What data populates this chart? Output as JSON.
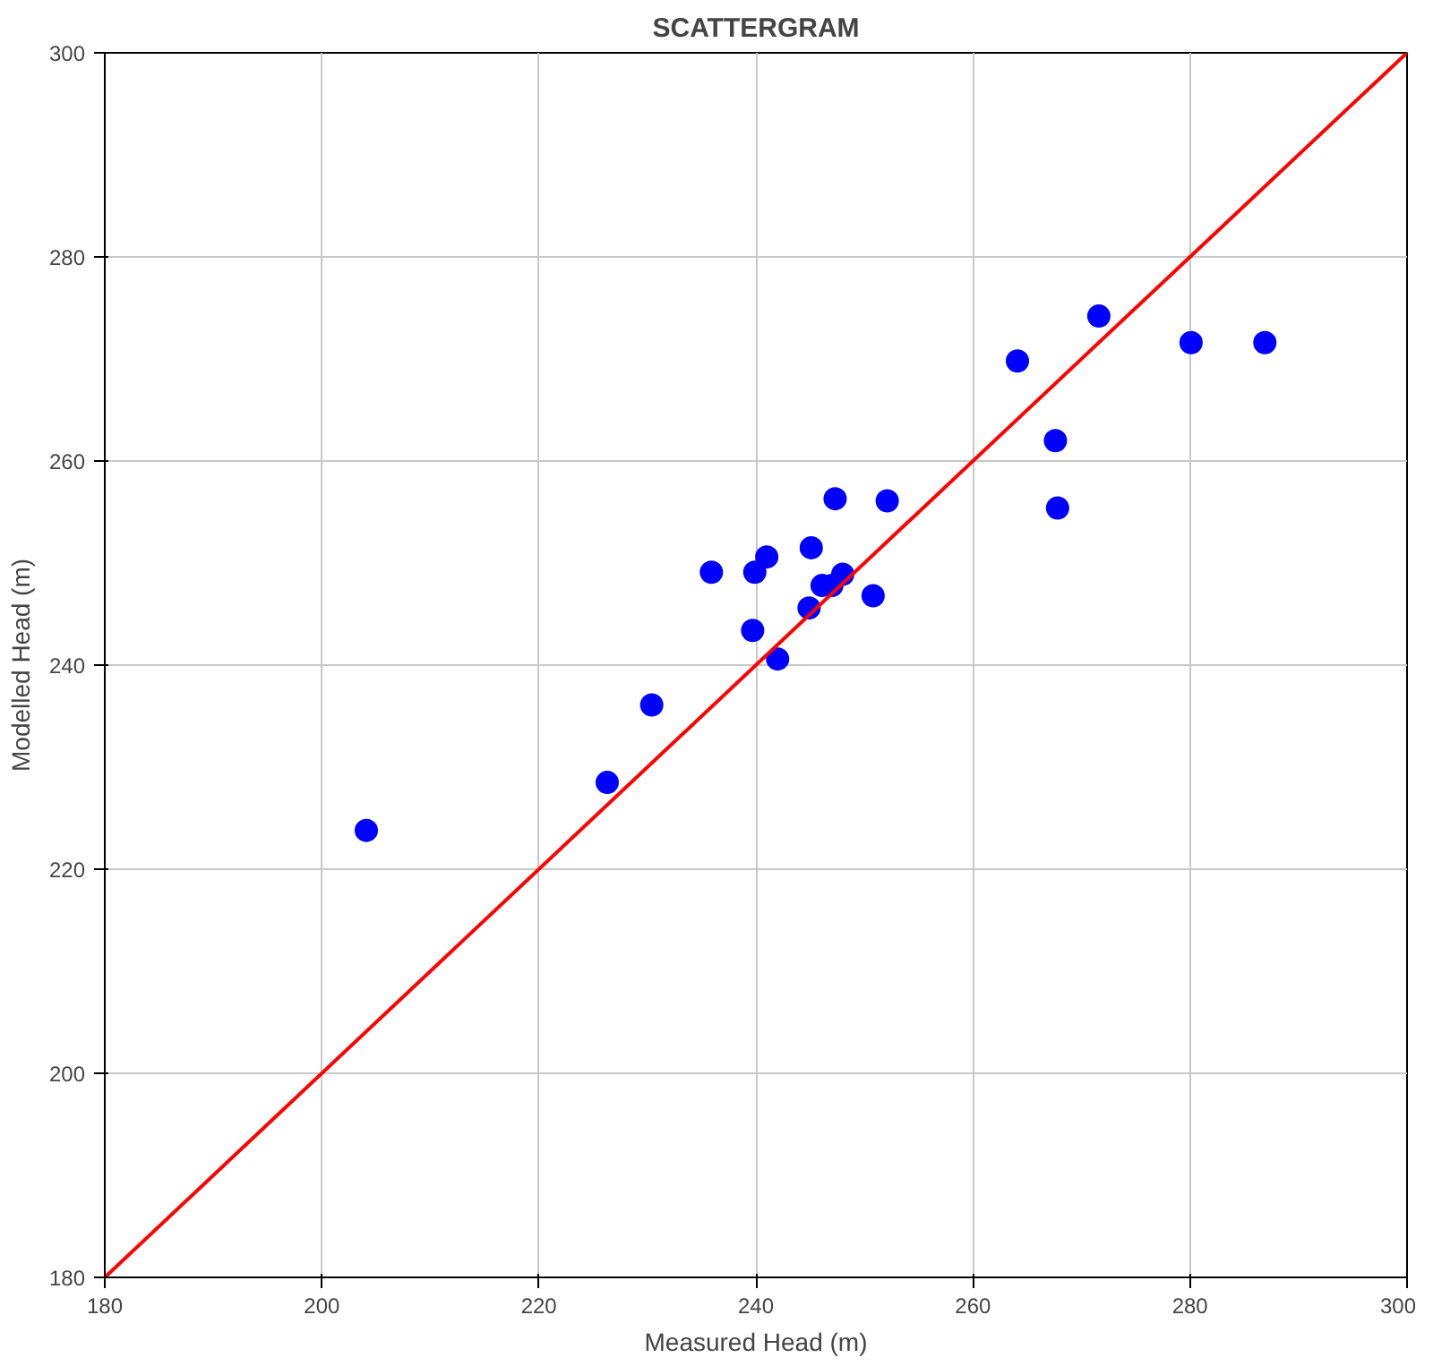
{
  "chart_data": {
    "type": "scatter",
    "title": "SCATTERGRAM",
    "xlabel": "Measured Head (m)",
    "ylabel": "Modelled Head (m)",
    "x": [
      204.1,
      226.3,
      230.4,
      239.7,
      242.0,
      244.9,
      250.8,
      246.1,
      247.0,
      248.0,
      235.9,
      239.9,
      241.0,
      245.1,
      247.3,
      252.1,
      267.8,
      267.6,
      264.1,
      271.6,
      280.1,
      286.9
    ],
    "series": [
      {
        "color": "#0000ff",
        "marker": "circle",
        "values": [
          223.8,
          228.5,
          236.1,
          243.4,
          240.6,
          245.6,
          246.8,
          247.8,
          247.8,
          248.9,
          249.1,
          249.1,
          250.6,
          251.5,
          256.3,
          256.1,
          255.4,
          262.0,
          269.8,
          274.2,
          271.6,
          271.6
        ]
      },
      {
        "type": "line",
        "color": "#ff0000",
        "marker": "none",
        "x": [
          180,
          300
        ],
        "values": [
          180,
          300
        ]
      }
    ],
    "xlim": [
      180,
      300
    ],
    "ylim": [
      180,
      300
    ],
    "xticks": [
      180,
      200,
      220,
      240,
      260,
      280,
      300
    ],
    "yticks": [
      180,
      200,
      220,
      240,
      260,
      280,
      300
    ],
    "grid": true
  }
}
